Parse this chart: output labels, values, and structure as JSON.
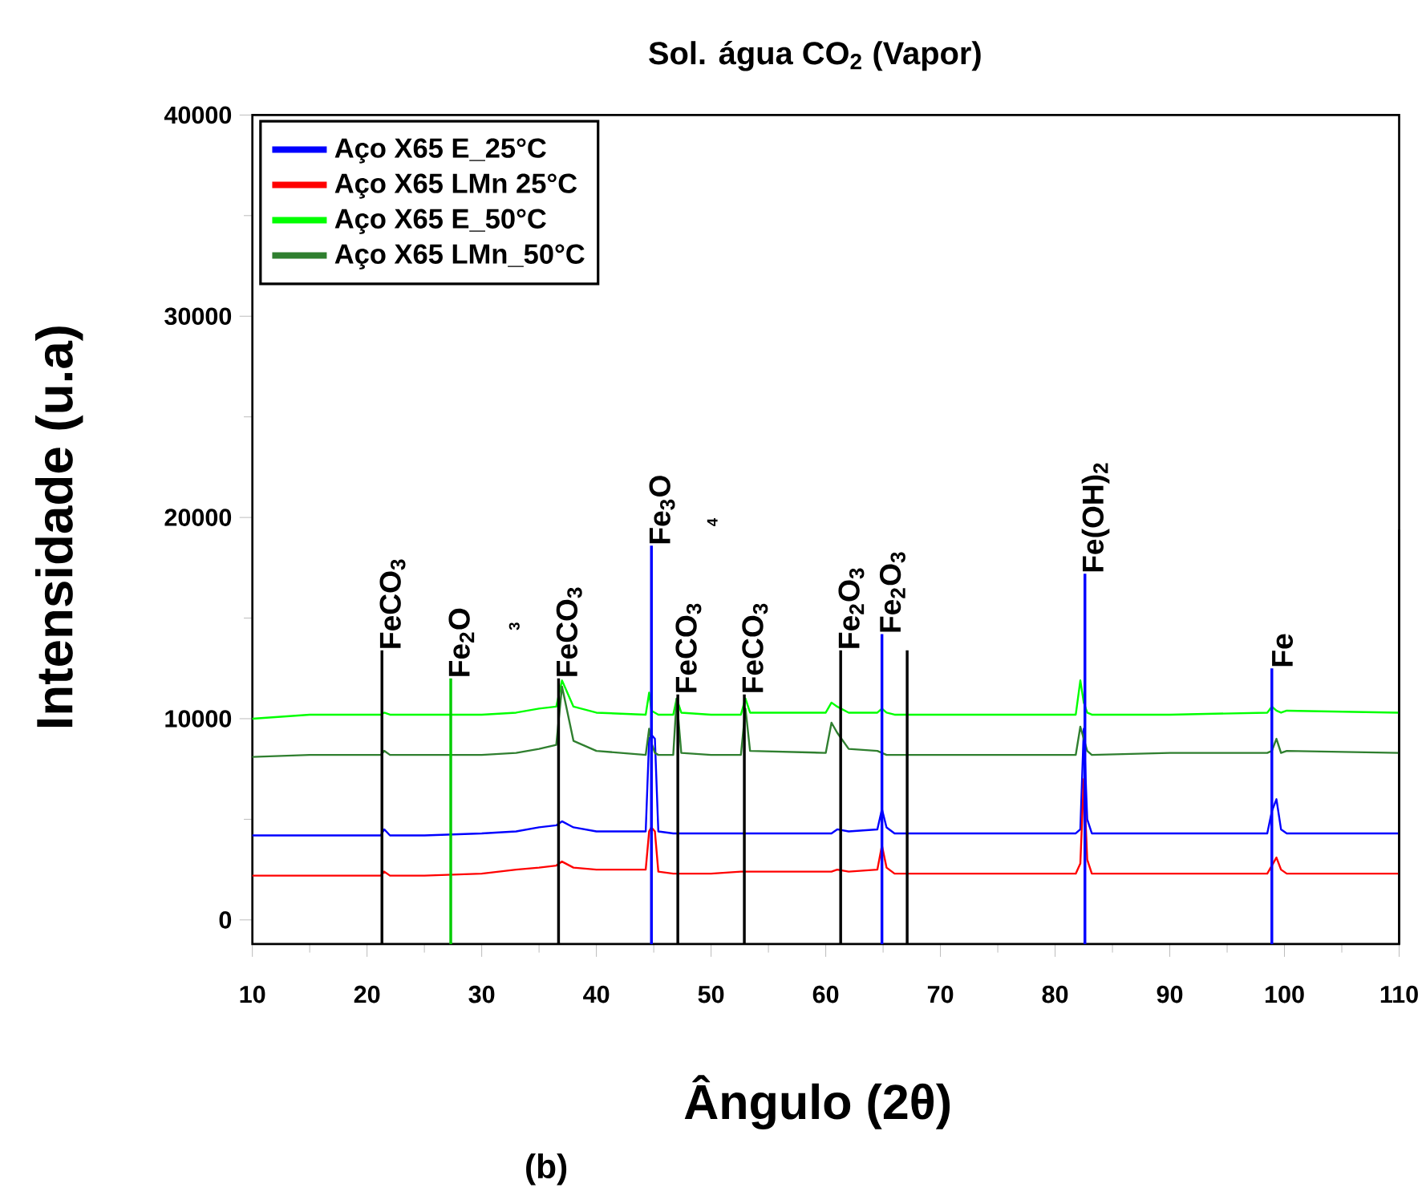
{
  "chart_data": {
    "type": "line",
    "title": "Sol. água CO$_{2}$ (Vapor)",
    "xlabel": "Ângulo (2θ)",
    "ylabel": "Intensidade (u.a)",
    "x": [
      10,
      15,
      20,
      21.2,
      21.5,
      22,
      25,
      30,
      33,
      35,
      36.5,
      37,
      38,
      40,
      44.3,
      44.6,
      44.8,
      45.1,
      45.4,
      46.7,
      47,
      47.4,
      50,
      52.6,
      53,
      53.4,
      60,
      60.5,
      61,
      62,
      64.5,
      64.9,
      65.3,
      66,
      70,
      81.8,
      82.2,
      82.5,
      82.8,
      83.2,
      90,
      98.5,
      98.9,
      99.3,
      99.7,
      100.2,
      110
    ],
    "series": [
      {
        "name": "Aço X65 E_25°C",
        "color": "#0000ff",
        "values": [
          4200,
          4200,
          4200,
          4200,
          4500,
          4200,
          4200,
          4300,
          4400,
          4600,
          4700,
          4900,
          4600,
          4400,
          4400,
          9000,
          9200,
          9000,
          4400,
          4300,
          4300,
          4300,
          4300,
          4300,
          4300,
          4300,
          4300,
          4300,
          4500,
          4400,
          4500,
          5500,
          4600,
          4300,
          4300,
          4300,
          4500,
          9500,
          5000,
          4300,
          4300,
          4300,
          5400,
          6000,
          4500,
          4300,
          4300
        ]
      },
      {
        "name": "Aço X65 LMn 25°C",
        "color": "#ff0000",
        "values": [
          2200,
          2200,
          2200,
          2200,
          2400,
          2200,
          2200,
          2300,
          2500,
          2600,
          2700,
          2900,
          2600,
          2500,
          2500,
          4400,
          4600,
          4400,
          2400,
          2300,
          2300,
          2300,
          2300,
          2400,
          2400,
          2400,
          2400,
          2400,
          2500,
          2400,
          2500,
          3700,
          2600,
          2300,
          2300,
          2300,
          2800,
          7000,
          3000,
          2300,
          2300,
          2300,
          2700,
          3100,
          2500,
          2300,
          2300
        ]
      },
      {
        "name": "Aço X65 E_50°C",
        "color": "#00ff00",
        "values": [
          10000,
          10200,
          10200,
          10200,
          10300,
          10200,
          10200,
          10200,
          10300,
          10500,
          10600,
          11900,
          10600,
          10300,
          10200,
          11300,
          10400,
          10300,
          10200,
          10200,
          11000,
          10300,
          10200,
          10200,
          11000,
          10300,
          10300,
          10800,
          10600,
          10300,
          10300,
          10500,
          10300,
          10200,
          10200,
          10200,
          11900,
          10800,
          10300,
          10200,
          10200,
          10300,
          10600,
          10400,
          10300,
          10400,
          10300
        ]
      },
      {
        "name": "Aço X65 LMn_50°C",
        "color": "#2f7f2f",
        "values": [
          8100,
          8200,
          8200,
          8200,
          8400,
          8200,
          8200,
          8200,
          8300,
          8500,
          8700,
          11600,
          8900,
          8400,
          8200,
          9500,
          8800,
          8300,
          8200,
          8200,
          11000,
          8300,
          8200,
          8200,
          10500,
          8400,
          8300,
          9800,
          9300,
          8500,
          8400,
          8300,
          8200,
          8200,
          8200,
          8200,
          9600,
          9000,
          8400,
          8200,
          8300,
          8300,
          8400,
          9000,
          8300,
          8400,
          8300
        ]
      },
      {
        "name": "FeCO$_{3}$",
        "color": "#000000",
        "x": [
          21.3,
          21.3
        ],
        "values": [
          -1200,
          13400
        ]
      },
      {
        "name": "Fe$_{2}$O",
        "color": "#00cc00",
        "x": [
          27.3,
          27.3
        ],
        "values": [
          -1200,
          12000
        ]
      },
      {
        "name": "FeCO$_{3}$",
        "color": "#000000",
        "x": [
          36.7,
          36.7
        ],
        "values": [
          -1200,
          12000
        ]
      },
      {
        "name": "Fe$_{3}$O",
        "color": "#0000ff",
        "x": [
          44.8,
          44.8
        ],
        "values": [
          -1200,
          18600
        ]
      },
      {
        "name": "FeCO$_{3}$",
        "color": "#000000",
        "x": [
          47.1,
          47.1
        ],
        "values": [
          -1200,
          11200
        ]
      },
      {
        "name": "FeCO$_{3}$",
        "color": "#000000",
        "x": [
          52.9,
          52.9
        ],
        "values": [
          -1200,
          11200
        ]
      },
      {
        "name": "Fe$_{2}$O$_{3}$",
        "color": "#000000",
        "x": [
          61.3,
          61.3
        ],
        "values": [
          -1200,
          13400
        ]
      },
      {
        "name": "Fe$_{2}$O$_{3}$",
        "color": "#0000ff",
        "x": [
          64.9,
          64.9
        ],
        "values": [
          -1200,
          14200
        ]
      },
      {
        "color": "#000000",
        "x": [
          67.1,
          67.1
        ],
        "values": [
          -1200,
          13400
        ]
      },
      {
        "name": "Fe(OH)$_{2}$",
        "color": "#0000ff",
        "x": [
          82.6,
          82.6
        ],
        "values": [
          -1200,
          17200
        ]
      },
      {
        "name": "Fe",
        "color": "#0000ff",
        "x": [
          98.9,
          98.9
        ],
        "values": [
          -1200,
          12500
        ]
      }
    ],
    "xlim": [
      10,
      110
    ],
    "xticks": [
      10,
      20,
      30,
      40,
      50,
      60,
      70,
      80,
      90,
      100,
      110
    ],
    "ylim": [
      -1200,
      40000
    ],
    "yticks": [
      0,
      10000,
      20000,
      30000,
      40000
    ],
    "legend": "top left",
    "annotations": [
      "3",
      "4",
      "(b)"
    ]
  }
}
